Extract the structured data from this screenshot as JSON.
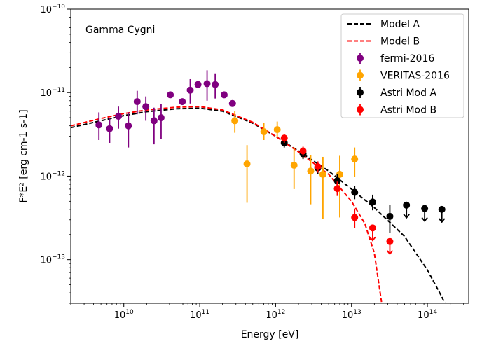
{
  "chart_data": {
    "type": "scatter",
    "annotation": "Gamma Cygni",
    "xlabel": "Energy [eV]",
    "ylabel": "F*E²  [erg cm-1 s-1]",
    "xscale": "log",
    "yscale": "log",
    "xlim": [
      2000000000.0,
      350000000000000.0
    ],
    "ylim": [
      3e-14,
      1e-10
    ],
    "x_ticks": [
      {
        "value": 10000000000.0,
        "base": "10",
        "exp": "10"
      },
      {
        "value": 100000000000.0,
        "base": "10",
        "exp": "11"
      },
      {
        "value": 1000000000000.0,
        "base": "10",
        "exp": "12"
      },
      {
        "value": 10000000000000.0,
        "base": "10",
        "exp": "13"
      },
      {
        "value": 100000000000000.0,
        "base": "10",
        "exp": "14"
      }
    ],
    "y_ticks": [
      {
        "value": 1e-13,
        "base": "10",
        "exp": "−13"
      },
      {
        "value": 1e-12,
        "base": "10",
        "exp": "−12"
      },
      {
        "value": 1e-11,
        "base": "10",
        "exp": "−11"
      },
      {
        "value": 1e-10,
        "base": "10",
        "exp": "−10"
      }
    ],
    "legend_position": "top-right",
    "lines": [
      {
        "name": "Model A",
        "color": "#000000",
        "style": "dashed",
        "x": [
          2000000000.0,
          5000000000.0,
          10000000000.0,
          20000000000.0,
          50000000000.0,
          100000000000.0,
          200000000000.0,
          500000000000.0,
          1000000000000.0,
          2000000000000.0,
          5000000000000.0,
          10000000000000.0,
          20000000000000.0,
          50000000000000.0,
          100000000000000.0,
          150000000000000.0,
          170000000000000.0
        ],
        "y": [
          3.8e-12,
          4.6e-12,
          5.3e-12,
          5.9e-12,
          6.4e-12,
          6.5e-12,
          6e-12,
          4.3e-12,
          3e-12,
          2e-12,
          1.15e-12,
          7e-13,
          4.2e-13,
          1.9e-13,
          7.5e-14,
          3.8e-14,
          3e-14
        ]
      },
      {
        "name": "Model B",
        "color": "#ff0000",
        "style": "dashed",
        "x": [
          2000000000.0,
          5000000000.0,
          10000000000.0,
          20000000000.0,
          50000000000.0,
          100000000000.0,
          200000000000.0,
          500000000000.0,
          1000000000000.0,
          2000000000000.0,
          5000000000000.0,
          10000000000000.0,
          15000000000000.0,
          20000000000000.0,
          25000000000000.0
        ],
        "y": [
          4e-12,
          4.9e-12,
          5.6e-12,
          6.2e-12,
          6.7e-12,
          6.8e-12,
          6.2e-12,
          4.4e-12,
          3e-12,
          1.95e-12,
          1.05e-12,
          5e-13,
          2.7e-13,
          1.2e-13,
          3e-14
        ]
      }
    ],
    "series": [
      {
        "name": "fermi-2016",
        "color": "#800080",
        "points": [
          {
            "x": 4700000000.0,
            "y": 4.1e-12,
            "lo": 2.7e-12,
            "hi": 5.8e-12
          },
          {
            "x": 6500000000.0,
            "y": 3.7e-12,
            "lo": 2.5e-12,
            "hi": 4.9e-12
          },
          {
            "x": 8500000000.0,
            "y": 5.2e-12,
            "lo": 3.7e-12,
            "hi": 6.8e-12
          },
          {
            "x": 11500000000.0,
            "y": 4e-12,
            "lo": 2.2e-12,
            "hi": 5.8e-12
          },
          {
            "x": 15000000000.0,
            "y": 7.8e-12,
            "lo": 5.5e-12,
            "hi": 1.05e-11
          },
          {
            "x": 19500000000.0,
            "y": 6.8e-12,
            "lo": 4.6e-12,
            "hi": 9e-12
          },
          {
            "x": 25000000000.0,
            "y": 4.6e-12,
            "lo": 2.4e-12,
            "hi": 6.6e-12
          },
          {
            "x": 31000000000.0,
            "y": 5e-12,
            "lo": 2.8e-12,
            "hi": 7.3e-12
          },
          {
            "x": 41000000000.0,
            "y": 9.4e-12,
            "lo": 9.4e-12,
            "hi": 9.4e-12
          },
          {
            "x": 59000000000.0,
            "y": 7.8e-12,
            "lo": 7.8e-12,
            "hi": 7.8e-12
          },
          {
            "x": 75000000000.0,
            "y": 1.07e-11,
            "lo": 7.4e-12,
            "hi": 1.45e-11
          },
          {
            "x": 95000000000.0,
            "y": 1.25e-11,
            "lo": 1.25e-11,
            "hi": 1.25e-11
          },
          {
            "x": 125000000000.0,
            "y": 1.28e-11,
            "lo": 8e-12,
            "hi": 1.85e-11
          },
          {
            "x": 160000000000.0,
            "y": 1.25e-11,
            "lo": 8.5e-12,
            "hi": 1.7e-11
          },
          {
            "x": 210000000000.0,
            "y": 9.4e-12,
            "lo": 9.4e-12,
            "hi": 9.4e-12
          },
          {
            "x": 270000000000.0,
            "y": 7.4e-12,
            "lo": 7.4e-12,
            "hi": 7.4e-12
          }
        ]
      },
      {
        "name": "VERITAS-2016",
        "color": "#ffa500",
        "points": [
          {
            "x": 290000000000.0,
            "y": 4.6e-12,
            "lo": 3.3e-12,
            "hi": 6e-12
          },
          {
            "x": 420000000000.0,
            "y": 1.4e-12,
            "lo": 4.8e-13,
            "hi": 2.35e-12
          },
          {
            "x": 700000000000.0,
            "y": 3.4e-12,
            "lo": 2.7e-12,
            "hi": 4.3e-12
          },
          {
            "x": 1050000000000.0,
            "y": 3.6e-12,
            "lo": 2.9e-12,
            "hi": 4.5e-12
          },
          {
            "x": 1750000000000.0,
            "y": 1.35e-12,
            "lo": 7e-13,
            "hi": 2.2e-12
          },
          {
            "x": 2300000000000.0,
            "y": 1.85e-12,
            "lo": 1.6e-12,
            "hi": 2.15e-12
          },
          {
            "x": 2900000000000.0,
            "y": 1.15e-12,
            "lo": 4.6e-13,
            "hi": 1.8e-12
          },
          {
            "x": 4200000000000.0,
            "y": 1.05e-12,
            "lo": 3.1e-13,
            "hi": 1.7e-12
          },
          {
            "x": 7000000000000.0,
            "y": 1.05e-12,
            "lo": 3.2e-13,
            "hi": 1.75e-12
          },
          {
            "x": 11000000000000.0,
            "y": 1.6e-12,
            "lo": 9.8e-13,
            "hi": 2.2e-12
          }
        ]
      },
      {
        "name": "Astri Mod A",
        "color": "#000000",
        "points": [
          {
            "x": 1300000000000.0,
            "y": 2.5e-12,
            "lo": 2.2e-12,
            "hi": 2.8e-12
          },
          {
            "x": 2300000000000.0,
            "y": 1.85e-12,
            "lo": 1.6e-12,
            "hi": 2.1e-12
          },
          {
            "x": 3600000000000.0,
            "y": 1.25e-12,
            "lo": 1.05e-12,
            "hi": 1.45e-12
          },
          {
            "x": 6500000000000.0,
            "y": 8.8e-13,
            "lo": 7.2e-13,
            "hi": 1.05e-12
          },
          {
            "x": 11000000000000.0,
            "y": 6.4e-13,
            "lo": 5.3e-13,
            "hi": 7.6e-13
          },
          {
            "x": 19000000000000.0,
            "y": 4.9e-13,
            "lo": 3.9e-13,
            "hi": 6e-13
          },
          {
            "x": 32000000000000.0,
            "y": 3.3e-13,
            "lo": 2.1e-13,
            "hi": 4.5e-13
          },
          {
            "x": 53000000000000.0,
            "y": 4.5e-13,
            "upper_limit": true
          },
          {
            "x": 92000000000000.0,
            "y": 4.1e-13,
            "upper_limit": true
          },
          {
            "x": 155000000000000.0,
            "y": 4e-13,
            "upper_limit": true
          }
        ]
      },
      {
        "name": "Astri Mod B",
        "color": "#ff0000",
        "points": [
          {
            "x": 1300000000000.0,
            "y": 2.85e-12,
            "lo": 2.5e-12,
            "hi": 3.2e-12
          },
          {
            "x": 2300000000000.0,
            "y": 2e-12,
            "lo": 1.75e-12,
            "hi": 2.25e-12
          },
          {
            "x": 3600000000000.0,
            "y": 1.3e-12,
            "lo": 1.1e-12,
            "hi": 1.5e-12
          },
          {
            "x": 6500000000000.0,
            "y": 7.1e-13,
            "lo": 5.8e-13,
            "hi": 8.6e-13
          },
          {
            "x": 11000000000000.0,
            "y": 3.2e-13,
            "lo": 2.4e-13,
            "hi": 4e-13
          },
          {
            "x": 19000000000000.0,
            "y": 2.4e-13,
            "upper_limit": true
          },
          {
            "x": 32000000000000.0,
            "y": 1.65e-13,
            "upper_limit": true
          }
        ]
      }
    ],
    "legend": [
      {
        "label": "Model A",
        "color": "#000000",
        "kind": "dashed-line"
      },
      {
        "label": "Model B",
        "color": "#ff0000",
        "kind": "dashed-line"
      },
      {
        "label": "fermi-2016",
        "color": "#800080",
        "kind": "errorbar"
      },
      {
        "label": "VERITAS-2016",
        "color": "#ffa500",
        "kind": "errorbar"
      },
      {
        "label": "Astri Mod A",
        "color": "#000000",
        "kind": "errorbar"
      },
      {
        "label": "Astri Mod B",
        "color": "#ff0000",
        "kind": "errorbar"
      }
    ]
  }
}
